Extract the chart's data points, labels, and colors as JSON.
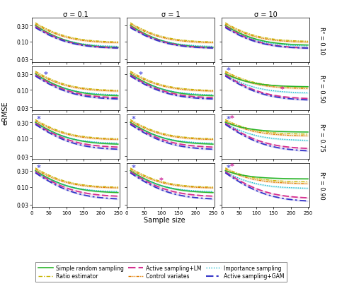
{
  "sigma_labels": [
    "σ = 0.1",
    "σ = 1",
    "σ = 10"
  ],
  "r2_labels": [
    "R² = 0.10",
    "R² = 0.50",
    "R² = 0.75",
    "R² = 0.90"
  ],
  "x_min": 10,
  "x_max": 250,
  "yticks": [
    0.03,
    0.1,
    0.3
  ],
  "xticks": [
    0,
    50,
    100,
    150,
    200,
    250
  ],
  "xlabel": "Sample size",
  "ylabel": "eRMSE",
  "colors": {
    "srs": "#2ab52a",
    "ratio": "#c8b400",
    "cv": "#e07b00",
    "imp": "#00b4c8",
    "lm": "#d43090",
    "gam": "#3535c8"
  },
  "asterisks": {
    "r0c0": {
      "gam": null,
      "lm": null
    },
    "r0c1": {
      "gam": null,
      "lm": null
    },
    "r0c2": {
      "gam": null,
      "lm": null
    },
    "r1c0": {
      "gam": 40,
      "lm": null
    },
    "r1c1": {
      "gam": 40,
      "lm": null
    },
    "r1c2": {
      "gam": 20,
      "lm": 175
    },
    "r2c0": {
      "gam": 20,
      "lm": null
    },
    "r2c1": {
      "gam": 20,
      "lm": null
    },
    "r2c2": {
      "gam": 20,
      "lm": 20
    },
    "r3c0": {
      "gam": 20,
      "lm": null
    },
    "r3c1": {
      "gam": 20,
      "lm": 100
    },
    "r3c2": {
      "gam": 20,
      "lm": 20
    }
  }
}
